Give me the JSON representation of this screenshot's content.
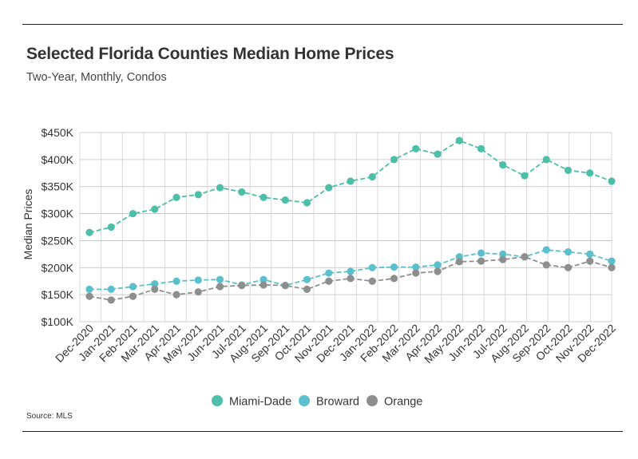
{
  "title": "Selected Florida Counties Median Home Prices",
  "subtitle": "Two-Year, Monthly, Condos",
  "source": "Source: MLS",
  "chart_data": {
    "type": "line",
    "ylabel": "Median Prices",
    "xlabel": "",
    "ylim": [
      100000,
      450000
    ],
    "yticks": [
      100000,
      150000,
      200000,
      250000,
      300000,
      350000,
      400000,
      450000
    ],
    "ytick_labels": [
      "$100K",
      "$150K",
      "$200K",
      "$250K",
      "$300K",
      "$350K",
      "$400K",
      "$450K"
    ],
    "grid": true,
    "legend": "bottom-center",
    "categories": [
      "Dec-2020",
      "Jan-2021",
      "Feb-2021",
      "Mar-2021",
      "Apr-2021",
      "May-2021",
      "Jun-2021",
      "Jul-2021",
      "Aug-2021",
      "Sep-2021",
      "Oct-2021",
      "Nov-2021",
      "Dec-2021",
      "Jan-2022",
      "Feb-2022",
      "Mar-2022",
      "Apr-2022",
      "May-2022",
      "Jun-2022",
      "Jul-2022",
      "Aug-2022",
      "Sep-2022",
      "Oct-2022",
      "Nov-2022",
      "Dec-2022"
    ],
    "series": [
      {
        "name": "Miami-Dade",
        "color": "#4dbfa8",
        "values": [
          265000,
          275000,
          300000,
          308000,
          330000,
          335000,
          348000,
          340000,
          330000,
          325000,
          320000,
          348000,
          360000,
          368000,
          400000,
          420000,
          410000,
          435000,
          420000,
          390000,
          370000,
          400000,
          380000,
          375000,
          360000
        ]
      },
      {
        "name": "Broward",
        "color": "#5bbfcc",
        "values": [
          160000,
          160000,
          165000,
          170000,
          175000,
          177000,
          178000,
          168000,
          178000,
          167000,
          178000,
          190000,
          193000,
          200000,
          201000,
          201000,
          205000,
          220000,
          227000,
          225000,
          220000,
          233000,
          229000,
          225000,
          212000
        ]
      },
      {
        "name": "Orange",
        "color": "#8e8e8e",
        "values": [
          147000,
          140000,
          147000,
          160000,
          150000,
          155000,
          165000,
          167000,
          168000,
          167000,
          160000,
          175000,
          180000,
          175000,
          180000,
          190000,
          193000,
          211000,
          212000,
          215000,
          220000,
          205000,
          200000,
          212000,
          200000
        ]
      }
    ]
  }
}
